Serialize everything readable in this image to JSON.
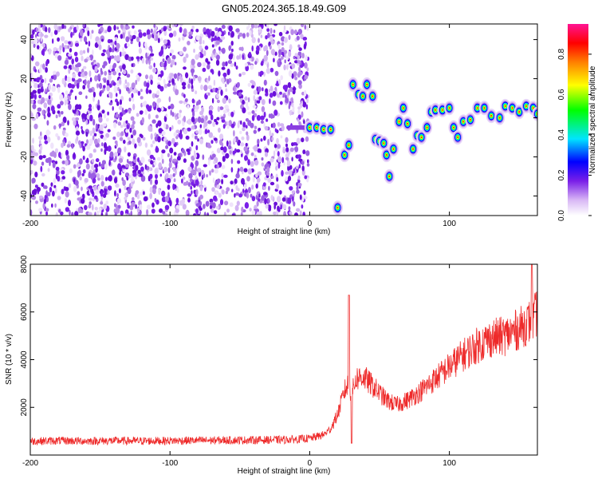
{
  "title": "GN05.2024.365.18.49.G09",
  "chart_data": [
    {
      "type": "heatmap",
      "xlabel": "Height of straight line (km)",
      "ylabel": "Frequency (Hz)",
      "xlim": [
        -200,
        163
      ],
      "ylim": [
        -50,
        48
      ],
      "xticks": [
        "-200",
        "-100",
        "0",
        "100"
      ],
      "yticks": [
        "-40",
        "-20",
        "0",
        "20",
        "40"
      ],
      "colorbar": {
        "label": "Normalized spectral amplitude",
        "ticks": [
          "0.0",
          "0.2",
          "0.4",
          "0.6",
          "0.8"
        ],
        "range": [
          0,
          0.95
        ]
      },
      "ridge": [
        {
          "x": 0,
          "y": -5
        },
        {
          "x": 5,
          "y": -5
        },
        {
          "x": 10,
          "y": -6
        },
        {
          "x": 15,
          "y": -6
        },
        {
          "x": 20,
          "y": -46
        },
        {
          "x": 25,
          "y": -19
        },
        {
          "x": 28,
          "y": -14
        },
        {
          "x": 31,
          "y": 17
        },
        {
          "x": 35,
          "y": 12
        },
        {
          "x": 38,
          "y": 11
        },
        {
          "x": 41,
          "y": 17
        },
        {
          "x": 45,
          "y": 11
        },
        {
          "x": 47,
          "y": -11
        },
        {
          "x": 50,
          "y": -12
        },
        {
          "x": 53,
          "y": -13
        },
        {
          "x": 55,
          "y": -19
        },
        {
          "x": 57,
          "y": -30
        },
        {
          "x": 60,
          "y": -16
        },
        {
          "x": 64,
          "y": -2
        },
        {
          "x": 67,
          "y": 5
        },
        {
          "x": 70,
          "y": -3
        },
        {
          "x": 74,
          "y": -16
        },
        {
          "x": 77,
          "y": -9
        },
        {
          "x": 80,
          "y": -10
        },
        {
          "x": 84,
          "y": -5
        },
        {
          "x": 87,
          "y": 3
        },
        {
          "x": 90,
          "y": 4
        },
        {
          "x": 95,
          "y": 4
        },
        {
          "x": 100,
          "y": 5
        },
        {
          "x": 103,
          "y": -5
        },
        {
          "x": 106,
          "y": -10
        },
        {
          "x": 110,
          "y": -2
        },
        {
          "x": 115,
          "y": -1
        },
        {
          "x": 120,
          "y": 5
        },
        {
          "x": 125,
          "y": 5
        },
        {
          "x": 130,
          "y": 1
        },
        {
          "x": 136,
          "y": 0
        },
        {
          "x": 140,
          "y": 6
        },
        {
          "x": 145,
          "y": 5
        },
        {
          "x": 150,
          "y": 3
        },
        {
          "x": 155,
          "y": 6
        },
        {
          "x": 160,
          "y": 5
        },
        {
          "x": 163,
          "y": 2
        }
      ]
    },
    {
      "type": "line",
      "xlabel": "Height of straight line (km)",
      "ylabel": "SNR (10 * v/v)",
      "xlim": [
        -200,
        163
      ],
      "ylim": [
        0,
        8000
      ],
      "xticks": [
        "-200",
        "-100",
        "0",
        "100"
      ],
      "yticks": [
        "2000",
        "4000",
        "6000",
        "8000"
      ],
      "color": "#ee2a2a",
      "series": [
        {
          "values": [
            [
              -200,
              580
            ],
            [
              -180,
              600
            ],
            [
              -160,
              590
            ],
            [
              -140,
              600
            ],
            [
              -120,
              590
            ],
            [
              -100,
              600
            ],
            [
              -80,
              610
            ],
            [
              -60,
              620
            ],
            [
              -40,
              630
            ],
            [
              -20,
              640
            ],
            [
              -10,
              660
            ],
            [
              0,
              700
            ],
            [
              10,
              850
            ],
            [
              15,
              1100
            ],
            [
              20,
              1700
            ],
            [
              25,
              2700
            ],
            [
              28,
              3000
            ],
            [
              30,
              2500
            ],
            [
              33,
              3200
            ],
            [
              38,
              3300
            ],
            [
              45,
              2900
            ],
            [
              55,
              2300
            ],
            [
              62,
              2100
            ],
            [
              70,
              2300
            ],
            [
              80,
              2700
            ],
            [
              90,
              3200
            ],
            [
              100,
              3700
            ],
            [
              110,
              4200
            ],
            [
              120,
              4600
            ],
            [
              130,
              4900
            ],
            [
              140,
              5000
            ],
            [
              150,
              5300
            ],
            [
              160,
              5700
            ],
            [
              163,
              6000
            ]
          ]
        }
      ],
      "spikes": [
        {
          "x": 28,
          "y": 6700
        },
        {
          "x": 30,
          "y": 500
        },
        {
          "x": 159,
          "y": 8000
        }
      ]
    }
  ],
  "colors": {
    "line": "#ee2a2a",
    "scatter": "#7a1fe8",
    "colormap": [
      "#ffffff",
      "#d9b8f5",
      "#7a1fe8",
      "#0000ff",
      "#00e5ff",
      "#00ff00",
      "#ffff00",
      "#ff8000",
      "#ff0000",
      "#ff1493"
    ]
  }
}
